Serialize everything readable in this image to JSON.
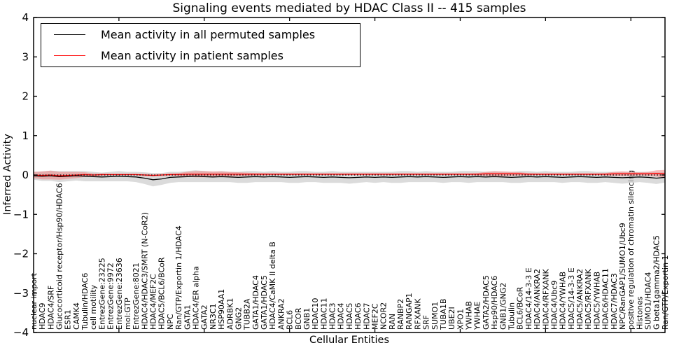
{
  "chart_data": {
    "type": "line",
    "title": "Signaling events mediated by HDAC Class II -- 415 samples",
    "xlabel": "Cellular Entities",
    "ylabel": "Inferred Activity",
    "ylim": [
      -4,
      4
    ],
    "yticks": [
      -4,
      -3,
      -2,
      -1,
      0,
      1,
      2,
      3,
      4
    ],
    "xtick_every": 10,
    "grid": false,
    "legend_position": "upper left",
    "zero_line": {
      "y": 0,
      "style": "dotted",
      "color": "#000000"
    },
    "categories": [
      "nuclear import",
      "HDAC9",
      "HDAC4/SRF",
      "Glucocorticoid receptor/Hsp90/HDAC6",
      "ESR1",
      "CAMK4",
      "Tubulin/HDAC6",
      "cell motility",
      "EntrezGene:23225",
      "EntrezGene:9972",
      "EntrezGene:23636",
      "mol:GTP",
      "EntrezGene:8021",
      "HDAC4/HDAC3/SMRT (N-CoR2)",
      "HDAC4/MEF2C",
      "HDAC5/BCL6/BCoR",
      "NPC",
      "Ran/GTP/Exportin 1/HDAC4",
      "GATA1",
      "HDAC4/ER alpha",
      "GATA2",
      "NR3C1",
      "HSP90AA1",
      "ADRBK1",
      "GNG2",
      "TUBB2A",
      "GATA1/HDAC4",
      "GATA1/HDAC5",
      "HDAC4/CaMK II delta B",
      "ANKRA2",
      "BCL6",
      "BCOR",
      "GNB1",
      "HDAC10",
      "HDAC11",
      "HDAC3",
      "HDAC4",
      "HDAC5",
      "HDAC6",
      "HDAC7",
      "MEF2C",
      "NCOR2",
      "RAN",
      "RANBP2",
      "RANGAP1",
      "RFXANK",
      "SRF",
      "SUMO1",
      "TUBA1B",
      "UBE2I",
      "XPO1",
      "YWHAB",
      "YWHAE",
      "GATA2/HDAC5",
      "Hsp90/HDAC6",
      "GNB1/GNG2",
      "Tubulin",
      "BCL6/BCoR",
      "HDAC4/14-3-3 E",
      "HDAC4/ANKRA2",
      "HDAC4/RFXANK",
      "HDAC4/Ubc9",
      "HDAC4/YWHAB",
      "HDAC5/14-3-3 E",
      "HDAC5/ANKRA2",
      "HDAC5/RFXANK",
      "HDAC5/YWHAB",
      "HDAC6/HDAC11",
      "HDAC7/HDAC3",
      "NPC/RanGAP1/SUMO1/Ubc9",
      "positive regulation of chromatin silencing",
      "Histones",
      "SUMO1/HDAC4",
      "G beta1gamma2/HDAC5",
      "Ran/GTP/Exportin 1"
    ],
    "series": [
      {
        "name": "Mean activity in all permuted samples",
        "color": "#000000",
        "band_color": "#c8c8c8",
        "values": [
          -0.02,
          -0.03,
          -0.02,
          -0.04,
          -0.03,
          -0.02,
          -0.03,
          -0.04,
          -0.05,
          -0.04,
          -0.03,
          -0.04,
          -0.05,
          -0.08,
          -0.12,
          -0.1,
          -0.06,
          -0.05,
          -0.04,
          -0.03,
          -0.04,
          -0.05,
          -0.04,
          -0.05,
          -0.06,
          -0.05,
          -0.04,
          -0.05,
          -0.04,
          -0.05,
          -0.06,
          -0.05,
          -0.04,
          -0.05,
          -0.06,
          -0.05,
          -0.06,
          -0.07,
          -0.06,
          -0.05,
          -0.06,
          -0.05,
          -0.06,
          -0.05,
          -0.04,
          -0.05,
          -0.04,
          -0.05,
          -0.06,
          -0.05,
          -0.04,
          -0.05,
          -0.04,
          -0.05,
          -0.04,
          -0.05,
          -0.06,
          -0.05,
          -0.04,
          -0.05,
          -0.04,
          -0.05,
          -0.06,
          -0.05,
          -0.04,
          -0.05,
          -0.06,
          -0.05,
          -0.06,
          -0.07,
          -0.06,
          -0.05,
          -0.06,
          -0.08,
          -0.06
        ],
        "band": [
          0.1,
          0.12,
          0.13,
          0.14,
          0.13,
          0.12,
          0.13,
          0.12,
          0.11,
          0.12,
          0.13,
          0.12,
          0.13,
          0.15,
          0.17,
          0.15,
          0.14,
          0.13,
          0.14,
          0.15,
          0.14,
          0.13,
          0.14,
          0.13,
          0.14,
          0.15,
          0.14,
          0.13,
          0.14,
          0.13,
          0.14,
          0.15,
          0.14,
          0.13,
          0.14,
          0.15,
          0.14,
          0.15,
          0.14,
          0.13,
          0.14,
          0.13,
          0.14,
          0.15,
          0.14,
          0.13,
          0.14,
          0.13,
          0.14,
          0.13,
          0.14,
          0.15,
          0.14,
          0.13,
          0.14,
          0.13,
          0.14,
          0.15,
          0.14,
          0.13,
          0.14,
          0.13,
          0.14,
          0.13,
          0.14,
          0.15,
          0.14,
          0.13,
          0.14,
          0.15,
          0.14,
          0.13,
          0.14,
          0.15,
          0.13
        ]
      },
      {
        "name": "Mean activity in patient samples",
        "color": "#ff0000",
        "band_color": "#ee8585",
        "values": [
          0.0,
          -0.01,
          0.0,
          -0.02,
          -0.01,
          0.0,
          0.01,
          0.0,
          0.01,
          0.01,
          0.01,
          0.01,
          0.01,
          0.0,
          -0.01,
          0.0,
          0.01,
          0.01,
          0.02,
          0.02,
          0.02,
          0.02,
          0.02,
          0.02,
          0.02,
          0.02,
          0.02,
          0.02,
          0.02,
          0.02,
          0.02,
          0.02,
          0.02,
          0.02,
          0.02,
          0.02,
          0.02,
          0.02,
          0.02,
          0.02,
          0.02,
          0.02,
          0.02,
          0.02,
          0.02,
          0.02,
          0.02,
          0.02,
          0.02,
          0.02,
          0.02,
          0.02,
          0.02,
          0.03,
          0.03,
          0.03,
          0.03,
          0.03,
          0.02,
          0.02,
          0.02,
          0.02,
          0.02,
          0.02,
          0.02,
          0.02,
          0.02,
          0.02,
          0.03,
          0.03,
          0.03,
          0.03,
          0.03,
          0.04,
          0.03
        ],
        "band": [
          0.08,
          0.1,
          0.11,
          0.1,
          0.09,
          0.08,
          0.06,
          0.04,
          0.03,
          0.02,
          0.02,
          0.02,
          0.02,
          0.03,
          0.03,
          0.03,
          0.03,
          0.04,
          0.06,
          0.08,
          0.08,
          0.07,
          0.07,
          0.06,
          0.05,
          0.04,
          0.03,
          0.03,
          0.02,
          0.02,
          0.02,
          0.02,
          0.02,
          0.02,
          0.02,
          0.02,
          0.02,
          0.02,
          0.02,
          0.02,
          0.02,
          0.02,
          0.02,
          0.02,
          0.02,
          0.02,
          0.02,
          0.02,
          0.02,
          0.02,
          0.02,
          0.02,
          0.03,
          0.05,
          0.06,
          0.06,
          0.05,
          0.04,
          0.03,
          0.02,
          0.02,
          0.02,
          0.02,
          0.02,
          0.02,
          0.02,
          0.02,
          0.03,
          0.05,
          0.06,
          0.05,
          0.04,
          0.05,
          0.08,
          0.1
        ]
      }
    ]
  }
}
